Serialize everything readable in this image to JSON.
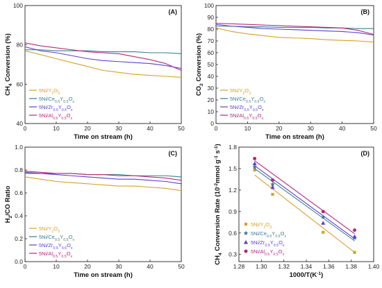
{
  "figure": {
    "colors": [
      "#d4a02a",
      "#3a7d8c",
      "#5a3fd0",
      "#b5287a"
    ],
    "markers": [
      "square",
      "star",
      "triangle",
      "circle"
    ],
    "legend_labels": [
      "5Ni/Y2O3",
      "5Ni/Ce0.5Y0.5Ox",
      "5Ni/Zr0.5Y0.5Ox",
      "5Ni/Al0.5Y0.5Ox"
    ]
  },
  "chart_data": [
    {
      "type": "line",
      "panel_label": "(A)",
      "xlabel": "Time on stream (h)",
      "ylabel": "CH4 Conversion (%)",
      "xlim": [
        0,
        50
      ],
      "ylim": [
        40,
        100
      ],
      "xticks": [
        0,
        10,
        20,
        30,
        40,
        50
      ],
      "yticks": [
        40,
        60,
        80,
        100
      ],
      "legend_position": "bottom-left",
      "x": [
        0,
        5,
        10,
        15,
        20,
        25,
        30,
        35,
        40,
        45,
        50
      ],
      "series": [
        {
          "name": "5Ni/Y2O3",
          "values": [
            77,
            75,
            73,
            71,
            69,
            67,
            66,
            65,
            64.5,
            64,
            63.5
          ]
        },
        {
          "name": "5Ni/Ce0.5Y0.5Ox",
          "values": [
            77.5,
            77.5,
            77,
            77,
            77,
            76.5,
            76.5,
            76.5,
            76,
            76,
            75.5
          ]
        },
        {
          "name": "5Ni/Zr0.5Y0.5Ox",
          "values": [
            79,
            77,
            76,
            74.5,
            73,
            72,
            71.5,
            71,
            70.5,
            69.5,
            68
          ]
        },
        {
          "name": "5Ni/Al0.5Y0.5Ox",
          "values": [
            81,
            79.5,
            78.5,
            77.5,
            76.5,
            76,
            75.5,
            74,
            72.5,
            70.5,
            67
          ]
        }
      ]
    },
    {
      "type": "line",
      "panel_label": "(B)",
      "xlabel": "Time on stream (h)",
      "ylabel": "CO2 Conversion (%)",
      "xlim": [
        0,
        50
      ],
      "ylim": [
        0,
        100
      ],
      "xticks": [
        0,
        10,
        20,
        30,
        40,
        50
      ],
      "yticks": [
        0,
        10,
        20,
        30,
        40,
        50,
        60,
        70,
        80,
        90,
        100
      ],
      "legend_position": "bottom-left",
      "x": [
        0,
        5,
        10,
        15,
        20,
        25,
        30,
        35,
        40,
        45,
        50
      ],
      "series": [
        {
          "name": "5Ni/Y2O3",
          "values": [
            81,
            78,
            76,
            74.5,
            73,
            72.5,
            72,
            71,
            70.5,
            70,
            69
          ]
        },
        {
          "name": "5Ni/Ce0.5Y0.5Ox",
          "values": [
            82.5,
            82.5,
            82,
            82,
            81.5,
            81.5,
            81.5,
            81,
            81,
            80.5,
            80.5
          ]
        },
        {
          "name": "5Ni/Zr0.5Y0.5Ox",
          "values": [
            84,
            82.5,
            81.5,
            80.5,
            80,
            79.5,
            79,
            78.5,
            78,
            77,
            75
          ]
        },
        {
          "name": "5Ni/Al0.5Y0.5Ox",
          "values": [
            85,
            84.5,
            84,
            83.5,
            83,
            82.5,
            82,
            81.5,
            81,
            79,
            75.5
          ]
        }
      ]
    },
    {
      "type": "line",
      "panel_label": "(C)",
      "xlabel": "Time on stream (h)",
      "ylabel": "H2/CO Ratio",
      "xlim": [
        0,
        50
      ],
      "ylim": [
        0.0,
        1.0
      ],
      "xticks": [
        0,
        10,
        20,
        30,
        40,
        50
      ],
      "yticks": [
        0.0,
        0.2,
        0.4,
        0.6,
        0.8,
        1.0
      ],
      "legend_position": "bottom-left",
      "x": [
        0,
        5,
        10,
        15,
        20,
        25,
        30,
        35,
        40,
        45,
        50
      ],
      "series": [
        {
          "name": "5Ni/Y2O3",
          "values": [
            0.74,
            0.72,
            0.7,
            0.69,
            0.68,
            0.67,
            0.66,
            0.66,
            0.65,
            0.64,
            0.62
          ]
        },
        {
          "name": "5Ni/Ce0.5Y0.5Ox",
          "values": [
            0.77,
            0.77,
            0.77,
            0.77,
            0.76,
            0.76,
            0.76,
            0.75,
            0.75,
            0.75,
            0.74
          ]
        },
        {
          "name": "5Ni/Zr0.5Y0.5Ox",
          "values": [
            0.78,
            0.77,
            0.76,
            0.75,
            0.74,
            0.73,
            0.72,
            0.72,
            0.71,
            0.7,
            0.68
          ]
        },
        {
          "name": "5Ni/Al0.5Y0.5Ox",
          "values": [
            0.79,
            0.78,
            0.77,
            0.77,
            0.76,
            0.76,
            0.75,
            0.75,
            0.74,
            0.73,
            0.71
          ]
        }
      ]
    },
    {
      "type": "scatter",
      "panel_label": "(D)",
      "xlabel": "1000/T(K-1)",
      "ylabel": "CH4 Conversion Rate (10-2mmol g-1 s-1)",
      "xlim": [
        1.28,
        1.4
      ],
      "ylim": [
        0.2,
        1.8
      ],
      "xticks": [
        1.28,
        1.3,
        1.32,
        1.34,
        1.36,
        1.38,
        1.4
      ],
      "yticks": [
        0.3,
        0.6,
        0.9,
        1.2,
        1.5,
        1.8
      ],
      "legend_position": "bottom-left",
      "x": [
        1.294,
        1.31,
        1.355,
        1.383
      ],
      "series": [
        {
          "name": "5Ni/Y2O3",
          "values": [
            1.48,
            1.14,
            0.61,
            0.33
          ],
          "fit": [
            1.41,
            0.33
          ]
        },
        {
          "name": "5Ni/Ce0.5Y0.5Ox",
          "values": [
            1.52,
            1.28,
            0.82,
            0.53
          ],
          "fit": [
            1.5,
            0.49
          ]
        },
        {
          "name": "5Ni/Zr0.5Y0.5Ox",
          "values": [
            1.57,
            1.24,
            0.74,
            0.55
          ],
          "fit": [
            1.54,
            0.52
          ]
        },
        {
          "name": "5Ni/Al0.5Y0.5Ox",
          "values": [
            1.64,
            1.34,
            0.9,
            0.64
          ],
          "fit": [
            1.61,
            0.59
          ]
        }
      ]
    }
  ]
}
